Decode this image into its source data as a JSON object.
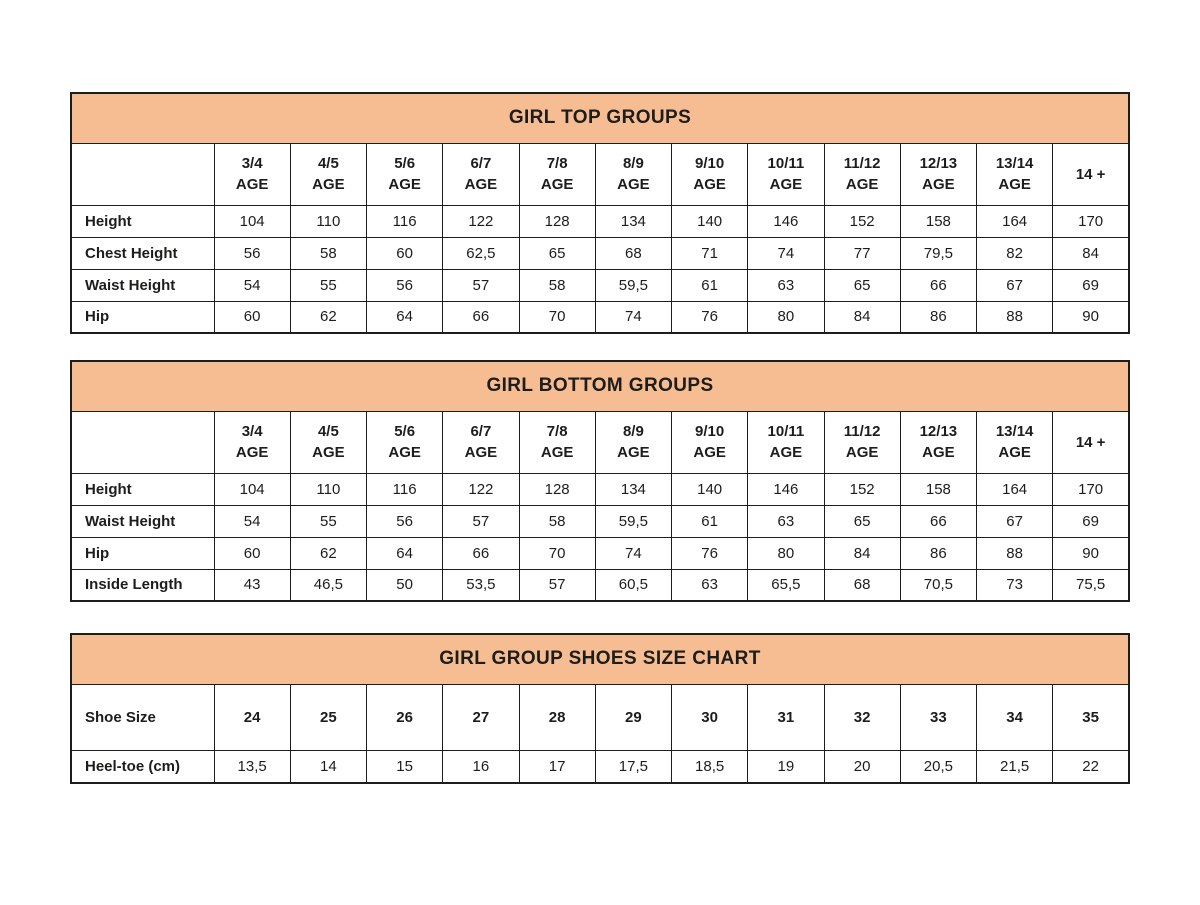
{
  "colors": {
    "title_band_bg": "#f7bd92",
    "border": "#1d1d1b",
    "text": "#1d1d1b",
    "background": "#ffffff"
  },
  "chart_data": [
    {
      "type": "table",
      "title": "GIRL TOP GROUPS",
      "corner_label": "",
      "columns": [
        "3/4\nAGE",
        "4/5\nAGE",
        "5/6\nAGE",
        "6/7\nAGE",
        "7/8\nAGE",
        "8/9\nAGE",
        "9/10\nAGE",
        "10/11\nAGE",
        "11/12\nAGE",
        "12/13\nAGE",
        "13/14\nAGE",
        "14 +"
      ],
      "rows": [
        {
          "label": "Height",
          "values": [
            "104",
            "110",
            "116",
            "122",
            "128",
            "134",
            "140",
            "146",
            "152",
            "158",
            "164",
            "170"
          ]
        },
        {
          "label": "Chest Height",
          "values": [
            "56",
            "58",
            "60",
            "62,5",
            "65",
            "68",
            "71",
            "74",
            "77",
            "79,5",
            "82",
            "84"
          ]
        },
        {
          "label": "Waist Height",
          "values": [
            "54",
            "55",
            "56",
            "57",
            "58",
            "59,5",
            "61",
            "63",
            "65",
            "66",
            "67",
            "69"
          ]
        },
        {
          "label": "Hip",
          "values": [
            "60",
            "62",
            "64",
            "66",
            "70",
            "74",
            "76",
            "80",
            "84",
            "86",
            "88",
            "90"
          ]
        }
      ]
    },
    {
      "type": "table",
      "title": "GIRL BOTTOM GROUPS",
      "corner_label": "",
      "columns": [
        "3/4\nAGE",
        "4/5\nAGE",
        "5/6\nAGE",
        "6/7\nAGE",
        "7/8\nAGE",
        "8/9\nAGE",
        "9/10\nAGE",
        "10/11\nAGE",
        "11/12\nAGE",
        "12/13\nAGE",
        "13/14\nAGE",
        "14 +"
      ],
      "rows": [
        {
          "label": "Height",
          "values": [
            "104",
            "110",
            "116",
            "122",
            "128",
            "134",
            "140",
            "146",
            "152",
            "158",
            "164",
            "170"
          ]
        },
        {
          "label": "Waist Height",
          "values": [
            "54",
            "55",
            "56",
            "57",
            "58",
            "59,5",
            "61",
            "63",
            "65",
            "66",
            "67",
            "69"
          ]
        },
        {
          "label": "Hip",
          "values": [
            "60",
            "62",
            "64",
            "66",
            "70",
            "74",
            "76",
            "80",
            "84",
            "86",
            "88",
            "90"
          ]
        },
        {
          "label": "Inside Length",
          "values": [
            "43",
            "46,5",
            "50",
            "53,5",
            "57",
            "60,5",
            "63",
            "65,5",
            "68",
            "70,5",
            "73",
            "75,5"
          ]
        }
      ]
    },
    {
      "type": "table",
      "title": "GIRL GROUP SHOES SIZE CHART",
      "corner_label": "Shoe Size",
      "columns": [
        "24",
        "25",
        "26",
        "27",
        "28",
        "29",
        "30",
        "31",
        "32",
        "33",
        "34",
        "35"
      ],
      "rows": [
        {
          "label": "Heel-toe (cm)",
          "values": [
            "13,5",
            "14",
            "15",
            "16",
            "17",
            "17,5",
            "18,5",
            "19",
            "20",
            "20,5",
            "21,5",
            "22"
          ]
        }
      ]
    }
  ]
}
